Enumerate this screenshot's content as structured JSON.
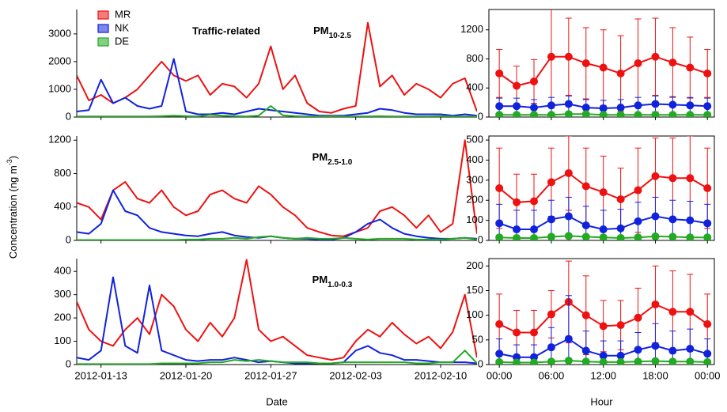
{
  "y_label": {
    "text": "Concentration (ng m",
    "superscript": "-3",
    "after": ")"
  },
  "chart_data": [
    {
      "type": "line",
      "annotation": "Traffic-related",
      "title": {
        "text": "PM",
        "subscript": "10-2.5"
      },
      "legend": "upper left",
      "x": [
        "2012-01-11",
        "2012-01-12",
        "2012-01-13",
        "2012-01-14",
        "2012-01-15",
        "2012-01-16",
        "2012-01-17",
        "2012-01-18",
        "2012-01-19",
        "2012-01-20",
        "2012-01-21",
        "2012-01-22",
        "2012-01-23",
        "2012-01-24",
        "2012-01-25",
        "2012-01-26",
        "2012-01-27",
        "2012-01-28",
        "2012-01-29",
        "2012-01-30",
        "2012-01-31",
        "2012-02-01",
        "2012-02-02",
        "2012-02-03",
        "2012-02-04",
        "2012-02-05",
        "2012-02-06",
        "2012-02-07",
        "2012-02-08",
        "2012-02-09",
        "2012-02-10",
        "2012-02-11",
        "2012-02-12",
        "2012-02-13"
      ],
      "xlim": [
        "2012-01-11",
        "2012-02-13"
      ],
      "ylim": [
        0,
        3880
      ],
      "yticks": [
        0,
        1000,
        2000,
        3000
      ],
      "series": [
        {
          "name": "MR",
          "color": "#ee1111",
          "values": [
            1500,
            600,
            800,
            500,
            700,
            1000,
            1500,
            2000,
            1500,
            1300,
            1500,
            800,
            1200,
            1100,
            700,
            1200,
            2550,
            1000,
            1500,
            500,
            200,
            150,
            300,
            400,
            3400,
            1100,
            1500,
            800,
            1200,
            1000,
            700,
            1200,
            1400,
            200
          ]
        },
        {
          "name": "NK",
          "color": "#1122dd",
          "values": [
            200,
            250,
            1350,
            500,
            700,
            400,
            300,
            400,
            2100,
            200,
            100,
            100,
            150,
            100,
            200,
            300,
            250,
            200,
            150,
            100,
            50,
            50,
            50,
            100,
            150,
            300,
            250,
            150,
            100,
            100,
            100,
            50,
            100,
            50
          ]
        },
        {
          "name": "DE",
          "color": "#22aa22",
          "values": [
            20,
            20,
            20,
            20,
            20,
            20,
            20,
            30,
            50,
            30,
            20,
            80,
            50,
            30,
            20,
            50,
            400,
            60,
            30,
            20,
            20,
            30,
            20,
            20,
            20,
            30,
            20,
            20,
            20,
            20,
            30,
            20,
            20,
            20
          ]
        }
      ]
    },
    {
      "type": "errorbar",
      "x": [
        0,
        2,
        4,
        6,
        8,
        10,
        12,
        14,
        16,
        18,
        20,
        22,
        24
      ],
      "xlim": [
        -1.2,
        24.8
      ],
      "ylim": [
        0,
        1480
      ],
      "yticks": [
        0,
        400,
        800,
        1200
      ],
      "series": [
        {
          "color": "#ee1111",
          "values": [
            600,
            430,
            490,
            830,
            830,
            740,
            680,
            600,
            740,
            830,
            750,
            680,
            600
          ],
          "errors": [
            330,
            270,
            300,
            700,
            530,
            490,
            520,
            520,
            610,
            530,
            480,
            420,
            330
          ]
        },
        {
          "color": "#1122dd",
          "values": [
            150,
            150,
            130,
            160,
            180,
            130,
            120,
            130,
            160,
            180,
            170,
            160,
            150
          ],
          "errors": [
            110,
            110,
            110,
            110,
            110,
            110,
            110,
            110,
            110,
            110,
            110,
            110,
            110
          ]
        },
        {
          "color": "#22aa22",
          "values": [
            30,
            30,
            30,
            30,
            40,
            40,
            30,
            30,
            30,
            30,
            30,
            30,
            30
          ],
          "errors": [
            20,
            20,
            20,
            20,
            20,
            20,
            20,
            20,
            20,
            20,
            20,
            20,
            20
          ]
        }
      ]
    },
    {
      "type": "line",
      "title": {
        "text": "PM",
        "subscript": "2.5-1.0"
      },
      "x": [
        "2012-01-11",
        "2012-01-12",
        "2012-01-13",
        "2012-01-14",
        "2012-01-15",
        "2012-01-16",
        "2012-01-17",
        "2012-01-18",
        "2012-01-19",
        "2012-01-20",
        "2012-01-21",
        "2012-01-22",
        "2012-01-23",
        "2012-01-24",
        "2012-01-25",
        "2012-01-26",
        "2012-01-27",
        "2012-01-28",
        "2012-01-29",
        "2012-01-30",
        "2012-01-31",
        "2012-02-01",
        "2012-02-02",
        "2012-02-03",
        "2012-02-04",
        "2012-02-05",
        "2012-02-06",
        "2012-02-07",
        "2012-02-08",
        "2012-02-09",
        "2012-02-10",
        "2012-02-11",
        "2012-02-12",
        "2012-02-13"
      ],
      "xlim": [
        "2012-01-11",
        "2012-02-13"
      ],
      "ylim": [
        0,
        1250
      ],
      "yticks": [
        0,
        400,
        800,
        1200
      ],
      "series": [
        {
          "color": "#ee1111",
          "values": [
            450,
            400,
            250,
            600,
            700,
            500,
            450,
            600,
            400,
            300,
            350,
            550,
            600,
            500,
            450,
            650,
            550,
            400,
            300,
            150,
            100,
            60,
            50,
            100,
            150,
            350,
            400,
            300,
            150,
            300,
            100,
            200,
            1200,
            80
          ]
        },
        {
          "color": "#1122dd",
          "values": [
            100,
            80,
            200,
            600,
            350,
            300,
            150,
            100,
            80,
            60,
            50,
            80,
            100,
            60,
            40,
            30,
            50,
            30,
            20,
            20,
            10,
            10,
            30,
            100,
            200,
            250,
            150,
            80,
            50,
            30,
            20,
            20,
            30,
            20
          ]
        },
        {
          "color": "#22aa22",
          "values": [
            5,
            5,
            5,
            5,
            5,
            5,
            5,
            5,
            5,
            10,
            10,
            20,
            20,
            30,
            20,
            40,
            50,
            30,
            20,
            30,
            20,
            20,
            30,
            20,
            10,
            20,
            20,
            20,
            10,
            10,
            10,
            20,
            30,
            10
          ]
        }
      ]
    },
    {
      "type": "errorbar",
      "x": [
        0,
        2,
        4,
        6,
        8,
        10,
        12,
        14,
        16,
        18,
        20,
        22,
        24
      ],
      "xlim": [
        -1.2,
        24.8
      ],
      "ylim": [
        0,
        520
      ],
      "yticks": [
        0,
        100,
        200,
        300,
        400,
        500
      ],
      "series": [
        {
          "color": "#ee1111",
          "values": [
            260,
            190,
            195,
            290,
            335,
            270,
            240,
            205,
            250,
            320,
            310,
            310,
            260
          ],
          "errors": [
            200,
            140,
            135,
            170,
            185,
            190,
            180,
            155,
            210,
            190,
            200,
            210,
            200
          ]
        },
        {
          "color": "#1122dd",
          "values": [
            85,
            55,
            55,
            105,
            120,
            75,
            55,
            60,
            95,
            120,
            105,
            100,
            85
          ],
          "errors": [
            95,
            95,
            95,
            95,
            95,
            95,
            95,
            95,
            95,
            95,
            95,
            95,
            95
          ]
        },
        {
          "color": "#22aa22",
          "values": [
            15,
            12,
            12,
            18,
            22,
            18,
            15,
            12,
            15,
            20,
            18,
            15,
            15
          ],
          "errors": [
            10,
            10,
            10,
            10,
            10,
            10,
            10,
            10,
            10,
            10,
            10,
            10,
            10
          ]
        }
      ]
    },
    {
      "type": "line",
      "title": {
        "text": "PM",
        "subscript": "1.0-0.3"
      },
      "x_label": "Date",
      "x": [
        "2012-01-11",
        "2012-01-12",
        "2012-01-13",
        "2012-01-14",
        "2012-01-15",
        "2012-01-16",
        "2012-01-17",
        "2012-01-18",
        "2012-01-19",
        "2012-01-20",
        "2012-01-21",
        "2012-01-22",
        "2012-01-23",
        "2012-01-24",
        "2012-01-25",
        "2012-01-26",
        "2012-01-27",
        "2012-01-28",
        "2012-01-29",
        "2012-01-30",
        "2012-01-31",
        "2012-02-01",
        "2012-02-02",
        "2012-02-03",
        "2012-02-04",
        "2012-02-05",
        "2012-02-06",
        "2012-02-07",
        "2012-02-08",
        "2012-02-09",
        "2012-02-10",
        "2012-02-11",
        "2012-02-12",
        "2012-02-13"
      ],
      "xlim": [
        "2012-01-11",
        "2012-02-13"
      ],
      "ylim": [
        0,
        455
      ],
      "yticks": [
        0,
        100,
        200,
        300,
        400
      ],
      "xticks": [
        "2012-01-13",
        "2012-01-20",
        "2012-01-27",
        "2012-02-03",
        "2012-02-10"
      ],
      "series": [
        {
          "color": "#ee1111",
          "values": [
            270,
            150,
            100,
            80,
            150,
            200,
            130,
            300,
            250,
            150,
            100,
            180,
            120,
            200,
            450,
            150,
            100,
            120,
            80,
            40,
            30,
            20,
            30,
            100,
            150,
            120,
            180,
            130,
            90,
            120,
            70,
            140,
            300,
            30
          ]
        },
        {
          "color": "#1122dd",
          "values": [
            30,
            20,
            60,
            375,
            80,
            50,
            340,
            60,
            40,
            20,
            15,
            20,
            20,
            30,
            20,
            10,
            15,
            10,
            5,
            5,
            5,
            5,
            10,
            60,
            80,
            50,
            40,
            20,
            20,
            15,
            10,
            10,
            10,
            5
          ]
        },
        {
          "color": "#22aa22",
          "values": [
            2,
            2,
            2,
            2,
            2,
            2,
            2,
            5,
            5,
            5,
            5,
            10,
            10,
            20,
            15,
            20,
            15,
            10,
            10,
            10,
            5,
            5,
            10,
            10,
            10,
            10,
            10,
            10,
            5,
            5,
            10,
            10,
            60,
            5
          ]
        }
      ]
    },
    {
      "type": "errorbar",
      "x_label": "Hour",
      "x": [
        0,
        2,
        4,
        6,
        8,
        10,
        12,
        14,
        16,
        18,
        20,
        22,
        24
      ],
      "xlim": [
        -1.2,
        24.8
      ],
      "ylim": [
        0,
        215
      ],
      "yticks": [
        0,
        50,
        100,
        150,
        200
      ],
      "xticks": [
        {
          "value": 0,
          "label": "00:00"
        },
        {
          "value": 6,
          "label": "06:00"
        },
        {
          "value": 12,
          "label": "12:00"
        },
        {
          "value": 18,
          "label": "18:00"
        },
        {
          "value": 24,
          "label": "00:00"
        }
      ],
      "series": [
        {
          "color": "#ee1111",
          "values": [
            82,
            65,
            65,
            102,
            127,
            100,
            78,
            80,
            95,
            122,
            107,
            107,
            82
          ],
          "errors": [
            61,
            45,
            45,
            48,
            83,
            80,
            52,
            50,
            60,
            78,
            83,
            76,
            61
          ]
        },
        {
          "color": "#1122dd",
          "values": [
            22,
            15,
            15,
            35,
            52,
            28,
            18,
            18,
            30,
            38,
            28,
            32,
            22
          ],
          "errors": [
            30,
            25,
            25,
            40,
            88,
            40,
            30,
            30,
            35,
            45,
            40,
            40,
            30
          ]
        },
        {
          "color": "#22aa22",
          "values": [
            5,
            4,
            4,
            6,
            8,
            6,
            5,
            5,
            6,
            7,
            6,
            6,
            5
          ],
          "errors": [
            4,
            4,
            4,
            4,
            4,
            4,
            4,
            4,
            4,
            4,
            4,
            4,
            4
          ]
        }
      ]
    }
  ]
}
